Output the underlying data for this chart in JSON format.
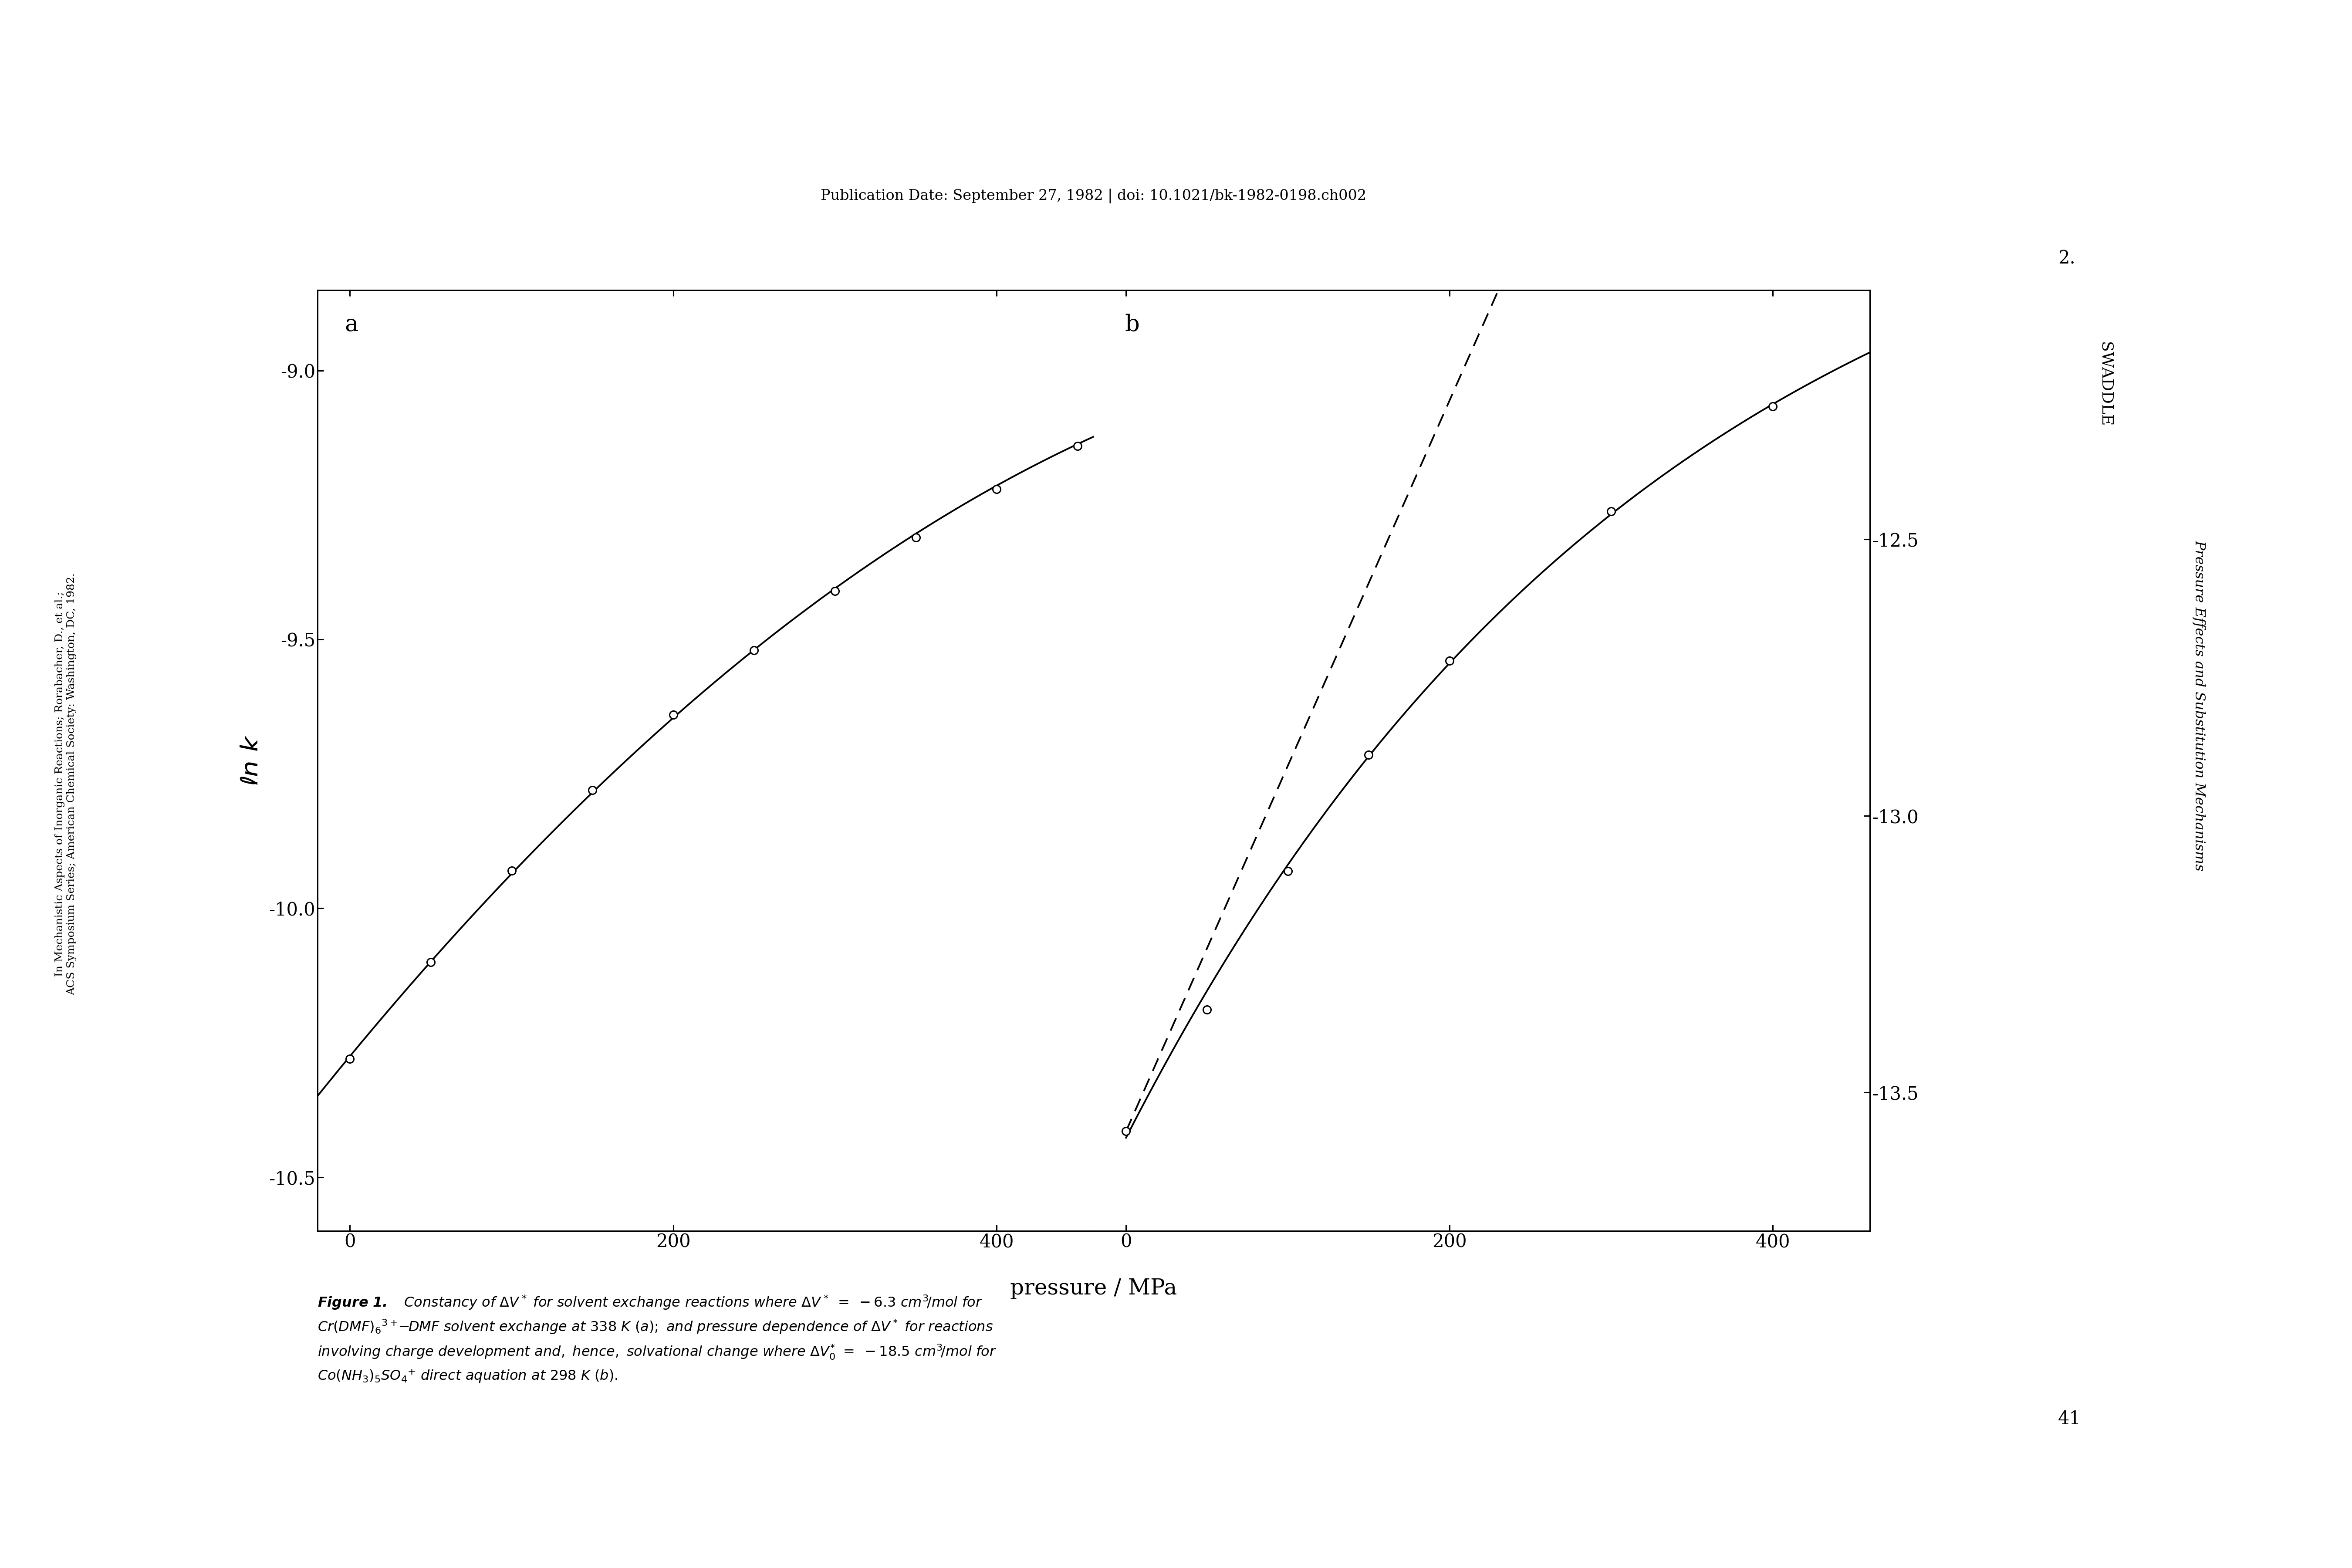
{
  "title_top": "Publication Date: September 27, 1982 | doi: 10.1021/bk-1982-0198.ch002",
  "panel_a_label": "a",
  "panel_b_label": "b",
  "xlabel": "pressure / MPa",
  "panel_a": {
    "x_line": [
      -20,
      0,
      50,
      100,
      150,
      200,
      250,
      300,
      350,
      400,
      450,
      460
    ],
    "y_line": [
      -10.35,
      -10.28,
      -10.1,
      -9.93,
      -9.78,
      -9.64,
      -9.52,
      -9.41,
      -9.31,
      -9.22,
      -9.14,
      -9.11
    ],
    "marker_x": [
      0,
      50,
      100,
      150,
      200,
      250,
      300,
      350,
      400,
      450
    ],
    "marker_y": [
      -10.28,
      -10.1,
      -9.93,
      -9.78,
      -9.64,
      -9.52,
      -9.41,
      -9.31,
      -9.22,
      -9.14
    ],
    "xlim": [
      -20,
      460
    ],
    "ylim": [
      -10.6,
      -8.85
    ],
    "yticks": [
      -9.0,
      -9.5,
      -10.0,
      -10.5
    ],
    "xticks": [
      0,
      200,
      400
    ]
  },
  "panel_b": {
    "x_solid_line": [
      0,
      30,
      60,
      100,
      150,
      200,
      250,
      300,
      350,
      400,
      450
    ],
    "y_solid_line": [
      -13.57,
      -13.42,
      -13.28,
      -13.1,
      -12.89,
      -12.72,
      -12.57,
      -12.45,
      -12.35,
      -12.26,
      -12.18
    ],
    "x_dashed_line": [
      0,
      50,
      100,
      150,
      200,
      250,
      300,
      350,
      400,
      450
    ],
    "y_dashed_line": [
      -13.57,
      -13.24,
      -12.91,
      -12.58,
      -12.25,
      -11.92,
      -11.59,
      -11.26,
      -10.93,
      -10.6
    ],
    "marker_x": [
      0,
      50,
      100,
      150,
      200,
      300,
      400
    ],
    "marker_y": [
      -13.57,
      -13.35,
      -13.1,
      -12.89,
      -12.72,
      -12.45,
      -12.26
    ],
    "xlim": [
      -20,
      460
    ],
    "ylim": [
      -13.75,
      -12.05
    ],
    "yticks": [
      -12.5,
      -13.0,
      -13.5
    ],
    "xticks": [
      0,
      200,
      400
    ]
  },
  "sidebar_left_line1": "In Mechanistic Aspects of Inorganic Reactions; Rorabacher, D., et al.;",
  "sidebar_left_line2": "ACS Symposium Series; American Chemical Society: Washington, DC, 1982.",
  "sidebar_right_num": "2.",
  "sidebar_right_name": "SWADDLE",
  "sidebar_right_title": "Pressure Effects and Substitution Mechanisms",
  "page_number": "41",
  "background_color": "#ffffff",
  "line_color": "#000000"
}
